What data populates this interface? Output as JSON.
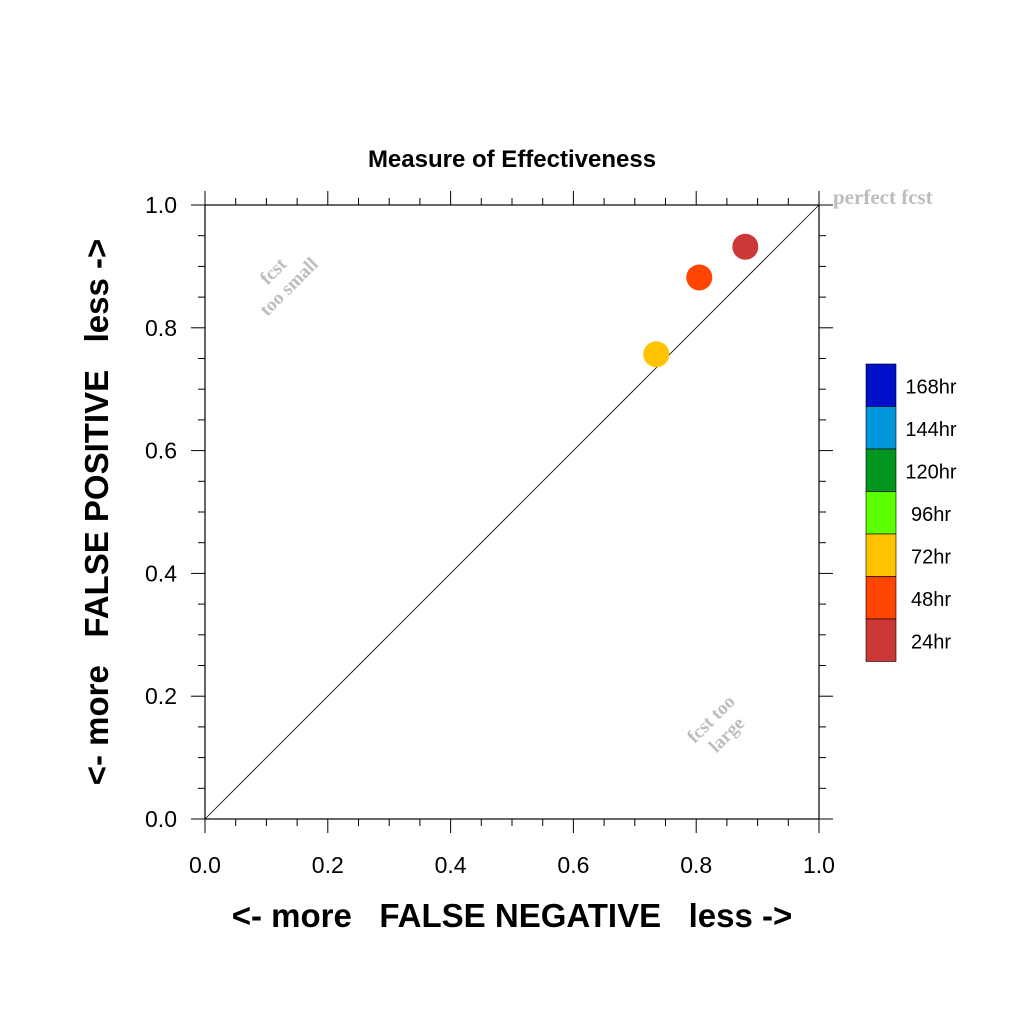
{
  "chart_data": {
    "type": "scatter",
    "title": "Measure of Effectiveness",
    "xlabel": "<- more   FALSE NEGATIVE   less ->",
    "ylabel": "<- more   FALSE POSITIVE   less ->",
    "xlim": [
      0.0,
      1.0
    ],
    "ylim": [
      0.0,
      1.0
    ],
    "x_ticks": [
      "0.0",
      "0.2",
      "0.4",
      "0.6",
      "0.8",
      "1.0"
    ],
    "y_ticks": [
      "0.0",
      "0.2",
      "0.4",
      "0.6",
      "0.8",
      "1.0"
    ],
    "grid": false,
    "reference_line": {
      "from": [
        0,
        0
      ],
      "to": [
        1,
        1
      ]
    },
    "annotations": {
      "perfect": "perfect fcst",
      "small_line1": "fcst",
      "small_line2": "too small",
      "large_line1": "fcst too",
      "large_line2": "large"
    },
    "points": [
      {
        "label": "72hr",
        "x": 0.735,
        "y": 0.757,
        "color": "#FFC300"
      },
      {
        "label": "48hr",
        "x": 0.805,
        "y": 0.882,
        "color": "#FF4500"
      },
      {
        "label": "24hr",
        "x": 0.88,
        "y": 0.932,
        "color": "#CC3838"
      }
    ],
    "legend": {
      "placement": "right",
      "items": [
        {
          "label": "168hr",
          "color": "#0010C8"
        },
        {
          "label": "144hr",
          "color": "#0096DC"
        },
        {
          "label": "120hr",
          "color": "#009620"
        },
        {
          "label": "96hr",
          "color": "#5CFF00"
        },
        {
          "label": "72hr",
          "color": "#FFC300"
        },
        {
          "label": "48hr",
          "color": "#FF4500"
        },
        {
          "label": "24hr",
          "color": "#CC3838"
        }
      ]
    }
  }
}
